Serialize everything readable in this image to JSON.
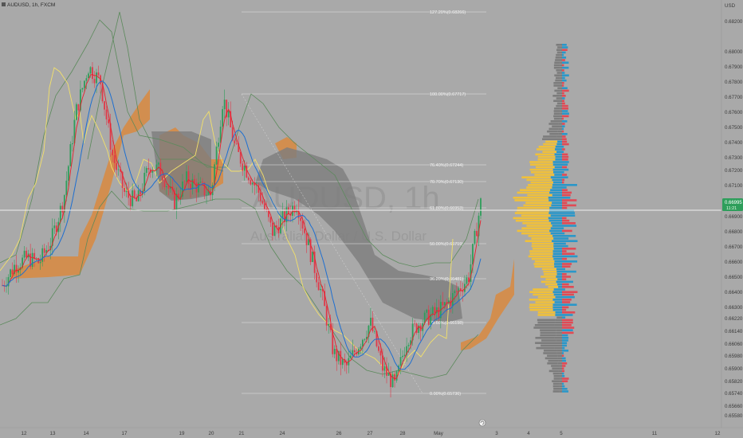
{
  "header": {
    "symbol_info": "AUDUSD, 1h, FXCM",
    "currency": "USD"
  },
  "watermark": {
    "main": "AUDUSD, 1h",
    "sub": "Australian Dollar / U.S. Dollar"
  },
  "price_badge": {
    "price": "0.66995",
    "countdown": "11:21"
  },
  "colors": {
    "background": "#a9a9a9",
    "candle_up": "#2e9e5b",
    "candle_down": "#e0394a",
    "ema_red": "#e8202a",
    "ma_blue": "#1e6fd0",
    "chikou_yellow": "#f2e06a",
    "band_green": "#5c8a5c",
    "kumo_orange": "#d98a3f",
    "kumo_gray": "#7d7d7d",
    "vp_yellow": "#f0c03a",
    "vp_blue": "#2a97c9",
    "vp_gray": "#7c7c7c",
    "vp_red": "#e04a55",
    "badge_green": "#2e9e5b"
  },
  "y_axis": {
    "ticks": [
      "0.68200",
      "0.68000",
      "0.67900",
      "0.67800",
      "0.67700",
      "0.67600",
      "0.67500",
      "0.67400",
      "0.67300",
      "0.67200",
      "0.67100",
      "0.66900",
      "0.66800",
      "0.66700",
      "0.66600",
      "0.66500",
      "0.66400",
      "0.66300",
      "0.66220",
      "0.66140",
      "0.66060",
      "0.65980",
      "0.65900",
      "0.65820",
      "0.65740",
      "0.65660",
      "0.65580"
    ]
  },
  "x_axis": {
    "ticks": [
      "12",
      "13",
      "14",
      "17",
      "19",
      "20",
      "21",
      "24",
      "26",
      "27",
      "28",
      "May",
      "3",
      "4",
      "5",
      "11",
      "12"
    ]
  },
  "fibonacci": [
    {
      "label": "127.20%(0.68266)"
    },
    {
      "label": "100.00%(0.67717)"
    },
    {
      "label": "76.40%(0.67244)"
    },
    {
      "label": "70.70%(0.67130)"
    },
    {
      "label": "61.80%(0.66953)"
    },
    {
      "label": "50.00%(0.66719)"
    },
    {
      "label": "36.20%(0.66481)"
    },
    {
      "label": "23.60%(0.66198)"
    },
    {
      "label": "0.00%(0.65736)"
    }
  ],
  "chart_data": {
    "type": "line",
    "title": "",
    "series_note": "AUDUSD 1h candles with Ichimoku cloud, moving averages, Bollinger bands, Fibonacci retracement and volume profile",
    "approx_close_path": [
      0.6645,
      0.6658,
      0.6663,
      0.666,
      0.6675,
      0.6702,
      0.676,
      0.679,
      0.678,
      0.673,
      0.6705,
      0.67,
      0.6725,
      0.672,
      0.67,
      0.6715,
      0.671,
      0.6705,
      0.677,
      0.6735,
      0.672,
      0.6705,
      0.668,
      0.669,
      0.67,
      0.667,
      0.664,
      0.66,
      0.659,
      0.6605,
      0.662,
      0.659,
      0.6578,
      0.661,
      0.662,
      0.6625,
      0.663,
      0.664,
      0.665,
      0.66995
    ],
    "fib_levels": [
      0.68266,
      0.67717,
      0.67244,
      0.6713,
      0.66953,
      0.66719,
      0.66481,
      0.66198,
      0.65736
    ],
    "last_price": 0.66995
  }
}
